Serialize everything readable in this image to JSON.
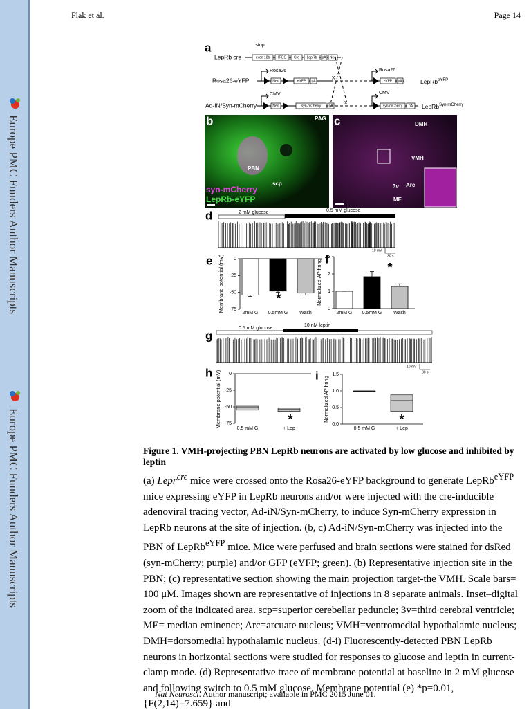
{
  "header": {
    "author": "Flak et al.",
    "page": "Page 14"
  },
  "sidebar": {
    "text": [
      "Europe PMC Funders Author Manuscripts",
      "Europe PMC Funders Author Manuscripts"
    ]
  },
  "figure": {
    "panel_a": {
      "label": "a",
      "stop": "stop",
      "row1": "LepRb cre",
      "row1_parts": [
        "exon 18b",
        "IRES",
        "Cre",
        "LepRb",
        "pA",
        "Neo"
      ],
      "row2": "Rosa26-eYFP",
      "row2_promoter": "Rosa26",
      "row2_parts": [
        "Neo",
        "eYFP",
        "pA"
      ],
      "row3": "Ad-IN/Syn-mCherry",
      "row3_promoter": "CMV",
      "row3_parts": [
        "Neo",
        "syn-mCherry",
        "pA"
      ],
      "cross": [
        "x",
        "x"
      ],
      "out1_promoter": "Rosa26",
      "out1_parts": [
        "eYFP",
        "pA"
      ],
      "out1_label": "LepRb",
      "out1_sup": "eYFP",
      "out2_promoter": "CMV",
      "out2_parts": [
        "syn-mCherry",
        "pA"
      ],
      "out2_label": "LepRb",
      "out2_sup": "Syn-mCherry"
    },
    "panel_b": {
      "label": "b",
      "pag": "PAG",
      "pbn": "PBN",
      "scp": "scp",
      "legend": [
        "syn-mCherry",
        "LepRb-eYFP"
      ]
    },
    "panel_c": {
      "label": "c",
      "dmh": "DMH",
      "vmh": "VMH",
      "v3": "3v",
      "arc": "Arc",
      "me": "ME"
    },
    "panel_d": {
      "label": "d",
      "conditions": [
        "2 mM glucose",
        "0.5 mM glucose"
      ],
      "scale": [
        "10 mV",
        "30 s"
      ]
    },
    "panel_e": {
      "label": "e",
      "ylabel": "Membrane potential (mV)",
      "categories": [
        "2mM G",
        "0.5mM G",
        "Wash"
      ],
      "values": [
        -54,
        -48,
        -51
      ],
      "errors": [
        2,
        2,
        3
      ],
      "colors": [
        "#ffffff",
        "#000000",
        "#c0c0c0"
      ],
      "ylim": [
        -75,
        0
      ],
      "yticks": [
        0,
        -25,
        -50,
        -75
      ],
      "significance": "*"
    },
    "panel_f": {
      "label": "f",
      "ylabel": "Normalized AP firing",
      "categories": [
        "2mM G",
        "0.5mM G",
        "Wash"
      ],
      "values": [
        1,
        1.84,
        1.28
      ],
      "errors": [
        0,
        0.3,
        0.15
      ],
      "colors": [
        "#ffffff",
        "#000000",
        "#c0c0c0"
      ],
      "ylim": [
        0,
        3
      ],
      "yticks": [
        0,
        1,
        2,
        3
      ],
      "significance": "*"
    },
    "panel_g": {
      "label": "g",
      "conditions": [
        "0.5 mM glucose",
        "10 nM leptin"
      ],
      "scale": [
        "10 mV",
        "30 s"
      ]
    },
    "panel_h": {
      "label": "h",
      "ylabel": "Membrane potential (mV)",
      "categories": [
        "0.5 mM G",
        "+ Lep"
      ],
      "boxes": [
        {
          "low": -55,
          "median": -51,
          "high": -49
        },
        {
          "low": -57,
          "median": -54,
          "high": -52
        }
      ],
      "ylim": [
        -75,
        0
      ],
      "yticks": [
        0,
        -25,
        -50,
        -75
      ],
      "significance": "*"
    },
    "panel_i": {
      "label": "i",
      "ylabel": "Normalized AP firing",
      "categories": [
        "0.5 mM G",
        "+ Lep"
      ],
      "boxes": [
        {
          "low": 1.0,
          "median": 1.0,
          "high": 1.0
        },
        {
          "low": 0.38,
          "median": 0.71,
          "high": 0.88
        }
      ],
      "ylim": [
        0,
        1.5
      ],
      "yticks": [
        {
          "value": 0,
          "label": "0.0"
        },
        {
          "value": 0.5,
          "label": "0.5"
        },
        {
          "value": 1,
          "label": "1.0"
        },
        {
          "value": 1.5,
          "label": "1.5"
        }
      ],
      "significance": "*"
    }
  },
  "caption": {
    "title": "Figure 1. VMH-projecting PBN LepRb neurons are activated by low glucose and inhibited by leptin",
    "parts": [
      "(a) ",
      "Lepr",
      "cre",
      " mice were crossed onto the Rosa26-eYFP background to generate LepRb",
      "eYFP",
      " mice expressing eYFP in LepRb neurons and/or were injected with the cre-inducible adenoviral tracing vector, Ad-iN/Syn-mCherry, to induce Syn-mCherry expression in LepRb neurons at the site of injection. (b, c) Ad-iN/Syn-mCherry was injected into the PBN of LepRb",
      "eYFP",
      " mice. Mice were perfused and brain sections were stained for dsRed (syn-mCherry; purple) and/or GFP (eYFP; green). (b) Representative injection site in the PBN; (c) representative section showing the main projection target-the VMH. Scale bars= 100 μM. Images shown are representative of injections in 8 separate animals. Inset–digital zoom of the indicated area. scp=superior cerebellar peduncle; 3v=third cerebral ventricle; ME= median eminence; Arc=arcuate nucleus; VMH=ventromedial hypothalamic nucleus; DMH=dorsomedial hypothalamic nucleus. (d-i) Fluorescently-detected PBN LepRb neurons in horizontal sections were studied for responses to glucose and leptin in current-clamp mode. (d) Representative trace of membrane potential at baseline in 2 mM glucose and following switch to 0.5 mM glucose. Membrane potential (e) *p=0.01, {F(2,14)=7.659} and"
    ]
  },
  "footer": {
    "journal": "Nat Neurosci",
    "rest": ". Author manuscript; available in PMC 2015 June 01."
  }
}
